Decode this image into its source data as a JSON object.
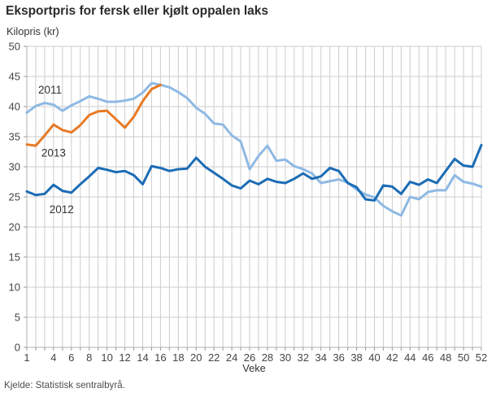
{
  "header": {
    "title": "Eksportpris for fersk eller kjølt oppalen laks"
  },
  "chart": {
    "y_axis_title": "Kilopris (kr)",
    "x_axis_title": "Veke",
    "source": "Kjelde: Statistisk sentralbyrå."
  },
  "chart_data": {
    "type": "line",
    "title": "Eksportpris for fersk eller kjølt oppalen laks",
    "xlabel": "Veke",
    "ylabel": "Kilopris (kr)",
    "xlim": [
      1,
      52
    ],
    "ylim": [
      0,
      50
    ],
    "grid": "vertical gridline every week, horizontal every 5 kr",
    "y_ticks": [
      0,
      5,
      10,
      15,
      20,
      25,
      30,
      35,
      40,
      45,
      50
    ],
    "x_tick_labels": [
      1,
      4,
      6,
      8,
      10,
      12,
      14,
      16,
      18,
      20,
      22,
      24,
      26,
      28,
      30,
      32,
      34,
      36,
      38,
      40,
      42,
      44,
      46,
      48,
      50,
      52
    ],
    "x": [
      1,
      2,
      3,
      4,
      5,
      6,
      7,
      8,
      9,
      10,
      11,
      12,
      13,
      14,
      15,
      16,
      17,
      18,
      19,
      20,
      21,
      22,
      23,
      24,
      25,
      26,
      27,
      28,
      29,
      30,
      31,
      32,
      33,
      34,
      35,
      36,
      37,
      38,
      39,
      40,
      41,
      42,
      43,
      44,
      45,
      46,
      47,
      48,
      49,
      50,
      51,
      52
    ],
    "series": [
      {
        "name": "2011",
        "color": "#8fb9e4",
        "values": [
          39.0,
          40.1,
          40.6,
          40.3,
          39.3,
          40.2,
          40.9,
          41.7,
          41.3,
          40.8,
          40.8,
          41.0,
          41.3,
          42.3,
          43.9,
          43.6,
          43.2,
          42.4,
          41.4,
          39.8,
          38.8,
          37.2,
          37.0,
          35.2,
          34.2,
          29.6,
          31.8,
          33.5,
          31.0,
          31.2,
          30.1,
          29.6,
          28.9,
          27.3,
          27.6,
          27.9,
          27.4,
          26.2,
          25.4,
          24.9,
          23.5,
          22.6,
          21.9,
          25.0,
          24.6,
          25.8,
          26.1,
          26.1,
          28.6,
          27.5,
          27.2,
          26.7
        ]
      },
      {
        "name": "2013",
        "color": "#e87a25",
        "values": [
          33.7,
          33.5,
          35.2,
          37.0,
          36.1,
          35.7,
          36.9,
          38.6,
          39.2,
          39.3,
          37.9,
          36.5,
          38.3,
          40.9,
          42.9,
          43.6
        ]
      },
      {
        "name": "2012",
        "color": "#1c6cb5",
        "values": [
          25.9,
          25.3,
          25.5,
          27.0,
          26.0,
          25.7,
          27.1,
          28.4,
          29.8,
          29.5,
          29.1,
          29.3,
          28.6,
          27.1,
          30.1,
          29.8,
          29.3,
          29.6,
          29.7,
          31.5,
          30.0,
          29.0,
          28.0,
          26.9,
          26.4,
          27.7,
          27.1,
          28.0,
          27.5,
          27.3,
          28.0,
          28.9,
          28.0,
          28.4,
          29.8,
          29.3,
          27.3,
          26.6,
          24.6,
          24.4,
          26.9,
          26.7,
          25.5,
          27.5,
          27.0,
          27.9,
          27.3,
          29.3,
          31.3,
          30.2,
          30.0,
          33.6
        ]
      }
    ],
    "annotations": [
      {
        "text": "2011",
        "week": 3.6,
        "value": 42.8
      },
      {
        "text": "2013",
        "week": 4.0,
        "value": 32.3
      },
      {
        "text": "2012",
        "week": 4.9,
        "value": 22.9
      }
    ],
    "style": {
      "grid_color": "#cdcdcd",
      "axis_color": "#b0b0b0",
      "tick_color": "#999999",
      "tick_label_color": "#444444",
      "annotation_color": "#333333"
    }
  }
}
